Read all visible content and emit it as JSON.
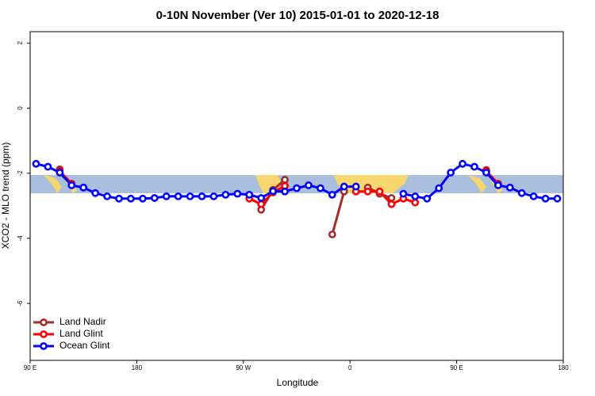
{
  "chart_data": {
    "type": "line",
    "title": "0-10N November (Ver 10)   2015-01-01 to 2020-12-18",
    "xlabel": "Longitude",
    "ylabel": "XCO2 - MLO trend (ppm)",
    "x": [
      95,
      105,
      115,
      125,
      135,
      145,
      155,
      165,
      175,
      185,
      195,
      205,
      215,
      225,
      235,
      245,
      255,
      265,
      275,
      285,
      295,
      305,
      315,
      325,
      335,
      345,
      355,
      365,
      375,
      385,
      395,
      405,
      415,
      425,
      435,
      445,
      455,
      465,
      475,
      485,
      495,
      505,
      515,
      525,
      535
    ],
    "series": [
      {
        "name": "Land Nadir",
        "color": "#a52a2a",
        "values": [
          null,
          null,
          -1.88,
          null,
          null,
          null,
          null,
          null,
          null,
          null,
          null,
          null,
          null,
          null,
          null,
          null,
          null,
          null,
          null,
          -3.12,
          -2.51,
          -2.2,
          null,
          null,
          null,
          -3.88,
          -2.56,
          null,
          -2.44,
          -2.63,
          -2.76,
          null,
          null,
          null,
          null,
          null,
          null,
          null,
          -1.9,
          null,
          null,
          null,
          null,
          null,
          null
        ]
      },
      {
        "name": "Land Glint",
        "color": "#ff0000",
        "values": [
          null,
          null,
          -1.93,
          -2.32,
          null,
          null,
          null,
          null,
          null,
          null,
          null,
          null,
          null,
          null,
          null,
          null,
          null,
          null,
          -2.78,
          -2.95,
          -2.59,
          -2.39,
          null,
          null,
          null,
          null,
          null,
          -2.56,
          -2.56,
          -2.56,
          -2.95,
          -2.78,
          -2.9,
          null,
          null,
          null,
          null,
          null,
          -1.93,
          -2.32,
          null,
          null,
          null,
          null,
          null
        ]
      },
      {
        "name": "Ocean Glint",
        "color": "#0000ff",
        "values": [
          -1.71,
          -1.8,
          -1.98,
          -2.37,
          -2.44,
          -2.61,
          -2.71,
          -2.78,
          -2.78,
          -2.78,
          -2.76,
          -2.71,
          -2.71,
          -2.71,
          -2.71,
          -2.71,
          -2.66,
          -2.63,
          -2.66,
          -2.76,
          -2.55,
          -2.56,
          -2.46,
          -2.37,
          -2.46,
          -2.66,
          -2.41,
          -2.41,
          null,
          null,
          null,
          -2.63,
          -2.71,
          -2.78,
          -2.46,
          -1.98,
          -1.71,
          -1.8,
          -1.98,
          -2.37,
          -2.44,
          -2.61,
          -2.71,
          -2.78,
          -2.78
        ]
      }
    ],
    "xlim": [
      90,
      540
    ],
    "xticks": [
      {
        "value": 90,
        "label": "90 E"
      },
      {
        "value": 180,
        "label": "180"
      },
      {
        "value": 270,
        "label": "90 W"
      },
      {
        "value": 360,
        "label": "0"
      },
      {
        "value": 450,
        "label": "90 E"
      },
      {
        "value": 540,
        "label": "180"
      }
    ],
    "ylim": [
      -7.75,
      2.35
    ],
    "yticks": [
      -6,
      -4,
      -2,
      0,
      2
    ],
    "legend": "bottom-left"
  }
}
